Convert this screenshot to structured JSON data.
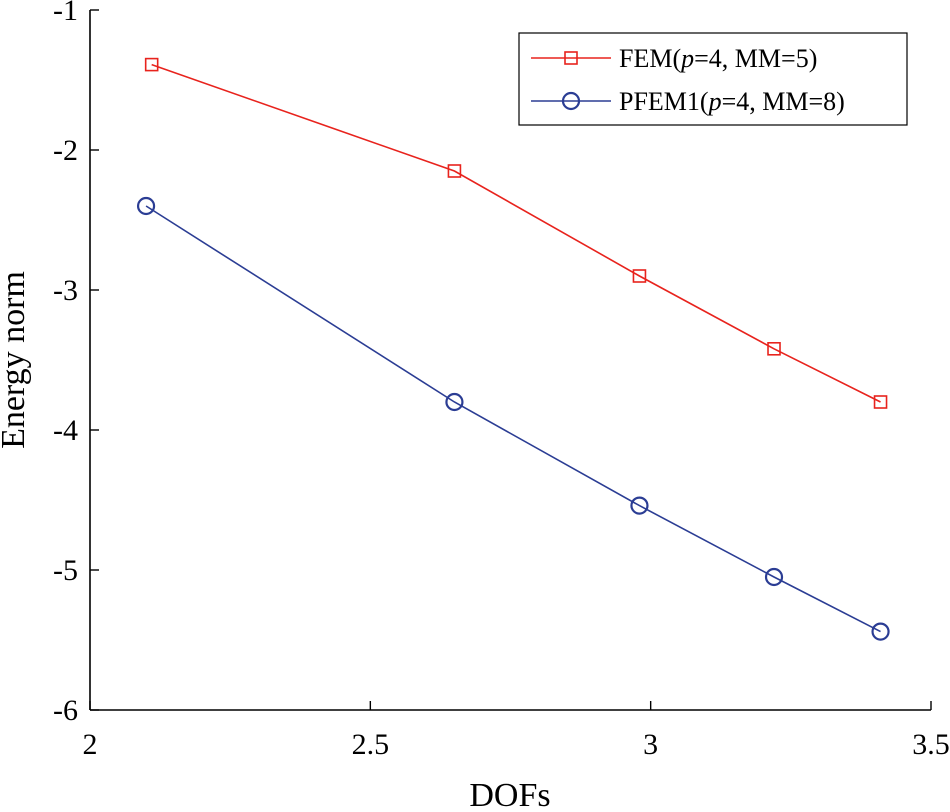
{
  "chart_data": {
    "type": "line",
    "title": "",
    "xlabel": "DOFs",
    "ylabel": "Energy norm",
    "xlim": [
      2,
      3.5
    ],
    "ylim": [
      -6,
      -1
    ],
    "xticks": [
      2,
      2.5,
      3,
      3.5
    ],
    "xtick_labels": [
      "2",
      "2.5",
      "3",
      "3.5"
    ],
    "yticks": [
      -1,
      -2,
      -3,
      -4,
      -5,
      -6
    ],
    "ytick_labels": [
      "-1",
      "-2",
      "-3",
      "-4",
      "-5",
      "-6"
    ],
    "grid": false,
    "legend_position": "top-right",
    "series": [
      {
        "name": "FEM(p=4, MM=5)",
        "legend_prefix": "FEM(",
        "legend_italic": "p",
        "legend_suffix": "=4, MM=5)",
        "color": "#e8231d",
        "marker": "square",
        "x": [
          2.11,
          2.65,
          2.98,
          3.22,
          3.41
        ],
        "y": [
          -1.39,
          -2.15,
          -2.9,
          -3.42,
          -3.8
        ]
      },
      {
        "name": "PFEM1(p=4, MM=8)",
        "legend_prefix": "PFEM1(",
        "legend_italic": "p",
        "legend_suffix": "=4, MM=8)",
        "color": "#2b3d94",
        "marker": "circle",
        "x": [
          2.1,
          2.65,
          2.98,
          3.22,
          3.41
        ],
        "y": [
          -2.4,
          -3.8,
          -4.54,
          -5.05,
          -5.44
        ]
      }
    ]
  }
}
